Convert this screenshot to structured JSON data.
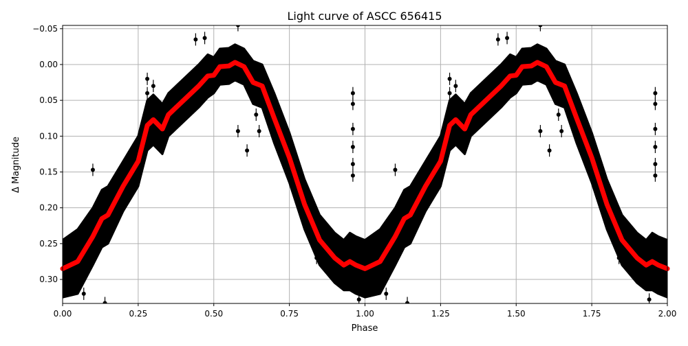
{
  "chart_data": {
    "type": "scatter",
    "title": "Light curve of ASCC 656415",
    "xlabel": "Phase",
    "ylabel": "Δ Magnitude",
    "xlim": [
      0,
      2
    ],
    "ylim": [
      0.3335,
      -0.0546
    ],
    "y_inverted": true,
    "grid": true,
    "xticks": [
      "0.00",
      "0.25",
      "0.50",
      "0.75",
      "1.00",
      "1.25",
      "1.50",
      "1.75",
      "2.00"
    ],
    "xtick_values": [
      0,
      0.25,
      0.5,
      0.75,
      1.0,
      1.25,
      1.5,
      1.75,
      2.0
    ],
    "yticks": [
      "−0.05",
      "0.00",
      "0.05",
      "0.10",
      "0.15",
      "0.20",
      "0.25",
      "0.30"
    ],
    "ytick_values": [
      -0.05,
      0,
      0.05,
      0.1,
      0.15,
      0.2,
      0.25,
      0.3
    ],
    "colors": {
      "observations": "#000000",
      "model": "#ff0000",
      "grid": "#b0b0b0"
    },
    "model_curve": {
      "phase": [
        0.0,
        0.05,
        0.1,
        0.13,
        0.15,
        0.2,
        0.25,
        0.28,
        0.3,
        0.33,
        0.35,
        0.4,
        0.45,
        0.48,
        0.5,
        0.52,
        0.55,
        0.57,
        0.6,
        0.63,
        0.66,
        0.7,
        0.75,
        0.8,
        0.85,
        0.9,
        0.93,
        0.95,
        0.97,
        1.0,
        1.05,
        1.1,
        1.13,
        1.15,
        1.2,
        1.25,
        1.28,
        1.3,
        1.33,
        1.35,
        1.4,
        1.45,
        1.48,
        1.5,
        1.52,
        1.55,
        1.57,
        1.6,
        1.63,
        1.66,
        1.7,
        1.75,
        1.8,
        1.85,
        1.9,
        1.93,
        1.95,
        1.97,
        2.0
      ],
      "magnitude": [
        0.285,
        0.275,
        0.24,
        0.215,
        0.21,
        0.17,
        0.135,
        0.085,
        0.077,
        0.09,
        0.07,
        0.05,
        0.03,
        0.016,
        0.015,
        0.003,
        0.002,
        -0.003,
        0.003,
        0.025,
        0.03,
        0.075,
        0.13,
        0.195,
        0.245,
        0.27,
        0.28,
        0.275,
        0.28,
        0.285,
        0.275,
        0.24,
        0.215,
        0.21,
        0.17,
        0.135,
        0.085,
        0.077,
        0.09,
        0.07,
        0.05,
        0.03,
        0.016,
        0.015,
        0.003,
        0.002,
        -0.003,
        0.003,
        0.025,
        0.03,
        0.075,
        0.13,
        0.195,
        0.245,
        0.27,
        0.28,
        0.275,
        0.28,
        0.285
      ]
    },
    "observation_band_halfwidth": [
      0.04,
      0.045,
      0.04,
      0.04,
      0.04,
      0.035,
      0.035,
      0.035,
      0.035,
      0.035,
      0.03,
      0.03,
      0.03,
      0.03,
      0.025,
      0.025,
      0.025,
      0.025,
      0.025,
      0.03,
      0.03,
      0.035,
      0.035,
      0.035,
      0.035,
      0.035,
      0.035,
      0.04,
      0.04,
      0.04,
      0.045,
      0.04,
      0.04,
      0.04,
      0.035,
      0.035,
      0.035,
      0.035,
      0.035,
      0.03,
      0.03,
      0.03,
      0.03,
      0.025,
      0.025,
      0.025,
      0.025,
      0.025,
      0.03,
      0.03,
      0.035,
      0.035,
      0.035,
      0.035,
      0.035,
      0.035,
      0.04,
      0.04,
      0.04
    ],
    "outliers": [
      [
        0.1,
        0.147
      ],
      [
        0.28,
        0.02
      ],
      [
        0.28,
        0.04
      ],
      [
        0.3,
        0.03
      ],
      [
        0.44,
        -0.035
      ],
      [
        0.47,
        -0.037
      ],
      [
        0.58,
        -0.055
      ],
      [
        0.61,
        0.12
      ],
      [
        0.58,
        0.093
      ],
      [
        0.65,
        0.093
      ],
      [
        0.64,
        0.07
      ],
      [
        0.96,
        0.04
      ],
      [
        0.96,
        0.055
      ],
      [
        0.96,
        0.09
      ],
      [
        0.96,
        0.115
      ],
      [
        0.96,
        0.139
      ],
      [
        0.96,
        0.155
      ],
      [
        0.98,
        0.328
      ],
      [
        0.07,
        0.32
      ],
      [
        0.14,
        0.333
      ],
      [
        0.84,
        0.27
      ],
      [
        1.1,
        0.147
      ],
      [
        1.28,
        0.02
      ],
      [
        1.28,
        0.04
      ],
      [
        1.3,
        0.03
      ],
      [
        1.44,
        -0.035
      ],
      [
        1.47,
        -0.037
      ],
      [
        1.58,
        -0.055
      ],
      [
        1.61,
        0.12
      ],
      [
        1.58,
        0.093
      ],
      [
        1.65,
        0.093
      ],
      [
        1.64,
        0.07
      ],
      [
        1.96,
        0.04
      ],
      [
        1.96,
        0.055
      ],
      [
        1.96,
        0.09
      ],
      [
        1.96,
        0.115
      ],
      [
        1.96,
        0.139
      ],
      [
        1.96,
        0.155
      ],
      [
        1.94,
        0.328
      ],
      [
        1.07,
        0.32
      ],
      [
        1.14,
        0.333
      ],
      [
        1.84,
        0.27
      ]
    ]
  }
}
